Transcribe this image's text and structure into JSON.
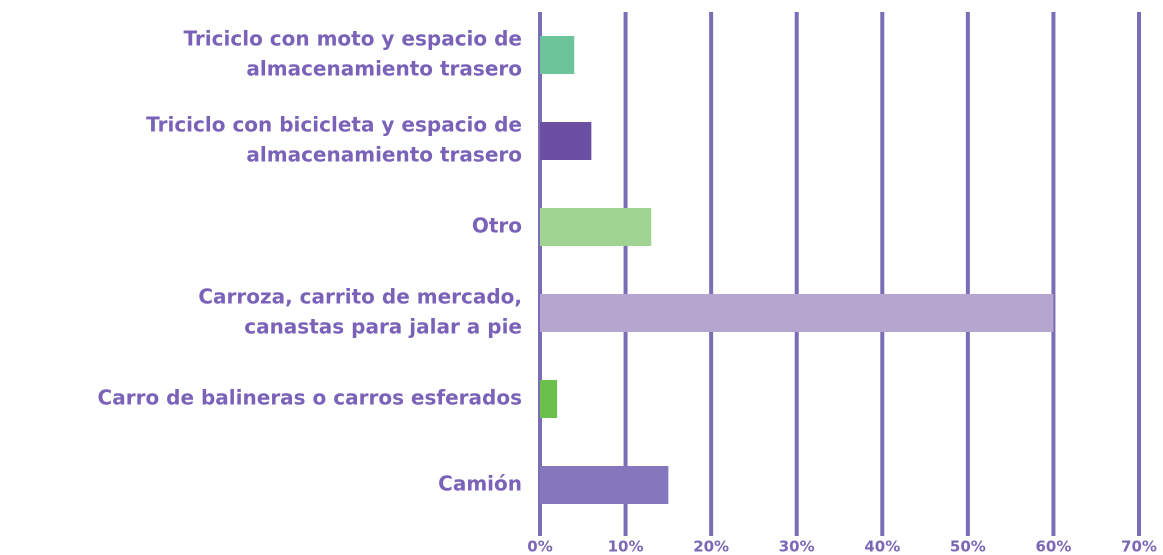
{
  "chart_data": {
    "type": "barh",
    "categories": [
      [
        "Triciclo con moto y espacio de",
        "almacenamiento trasero"
      ],
      [
        "Triciclo con bicicleta y espacio de",
        "almacenamiento trasero"
      ],
      [
        "Otro"
      ],
      [
        "Carroza, carrito de mercado,",
        "canastas para jalar a pie"
      ],
      [
        "Carro de balineras o carros esferados"
      ],
      [
        "Camión"
      ]
    ],
    "values": [
      4,
      6,
      13,
      60,
      2,
      15
    ],
    "colors": [
      "#6cc49a",
      "#6a4fa3",
      "#9ed391",
      "#b5a6d0",
      "#6bbf4c",
      "#8577bd"
    ],
    "xlim": [
      0,
      70
    ],
    "xticks": [
      {
        "value": 0,
        "label": "0%"
      },
      {
        "value": 10,
        "label": "10%"
      },
      {
        "value": 20,
        "label": "20%"
      },
      {
        "value": 30,
        "label": "30%"
      },
      {
        "value": 40,
        "label": "40%"
      },
      {
        "value": 50,
        "label": "50%"
      },
      {
        "value": 60,
        "label": "60%"
      },
      {
        "value": 70,
        "label": "70%"
      }
    ],
    "grid": true
  }
}
